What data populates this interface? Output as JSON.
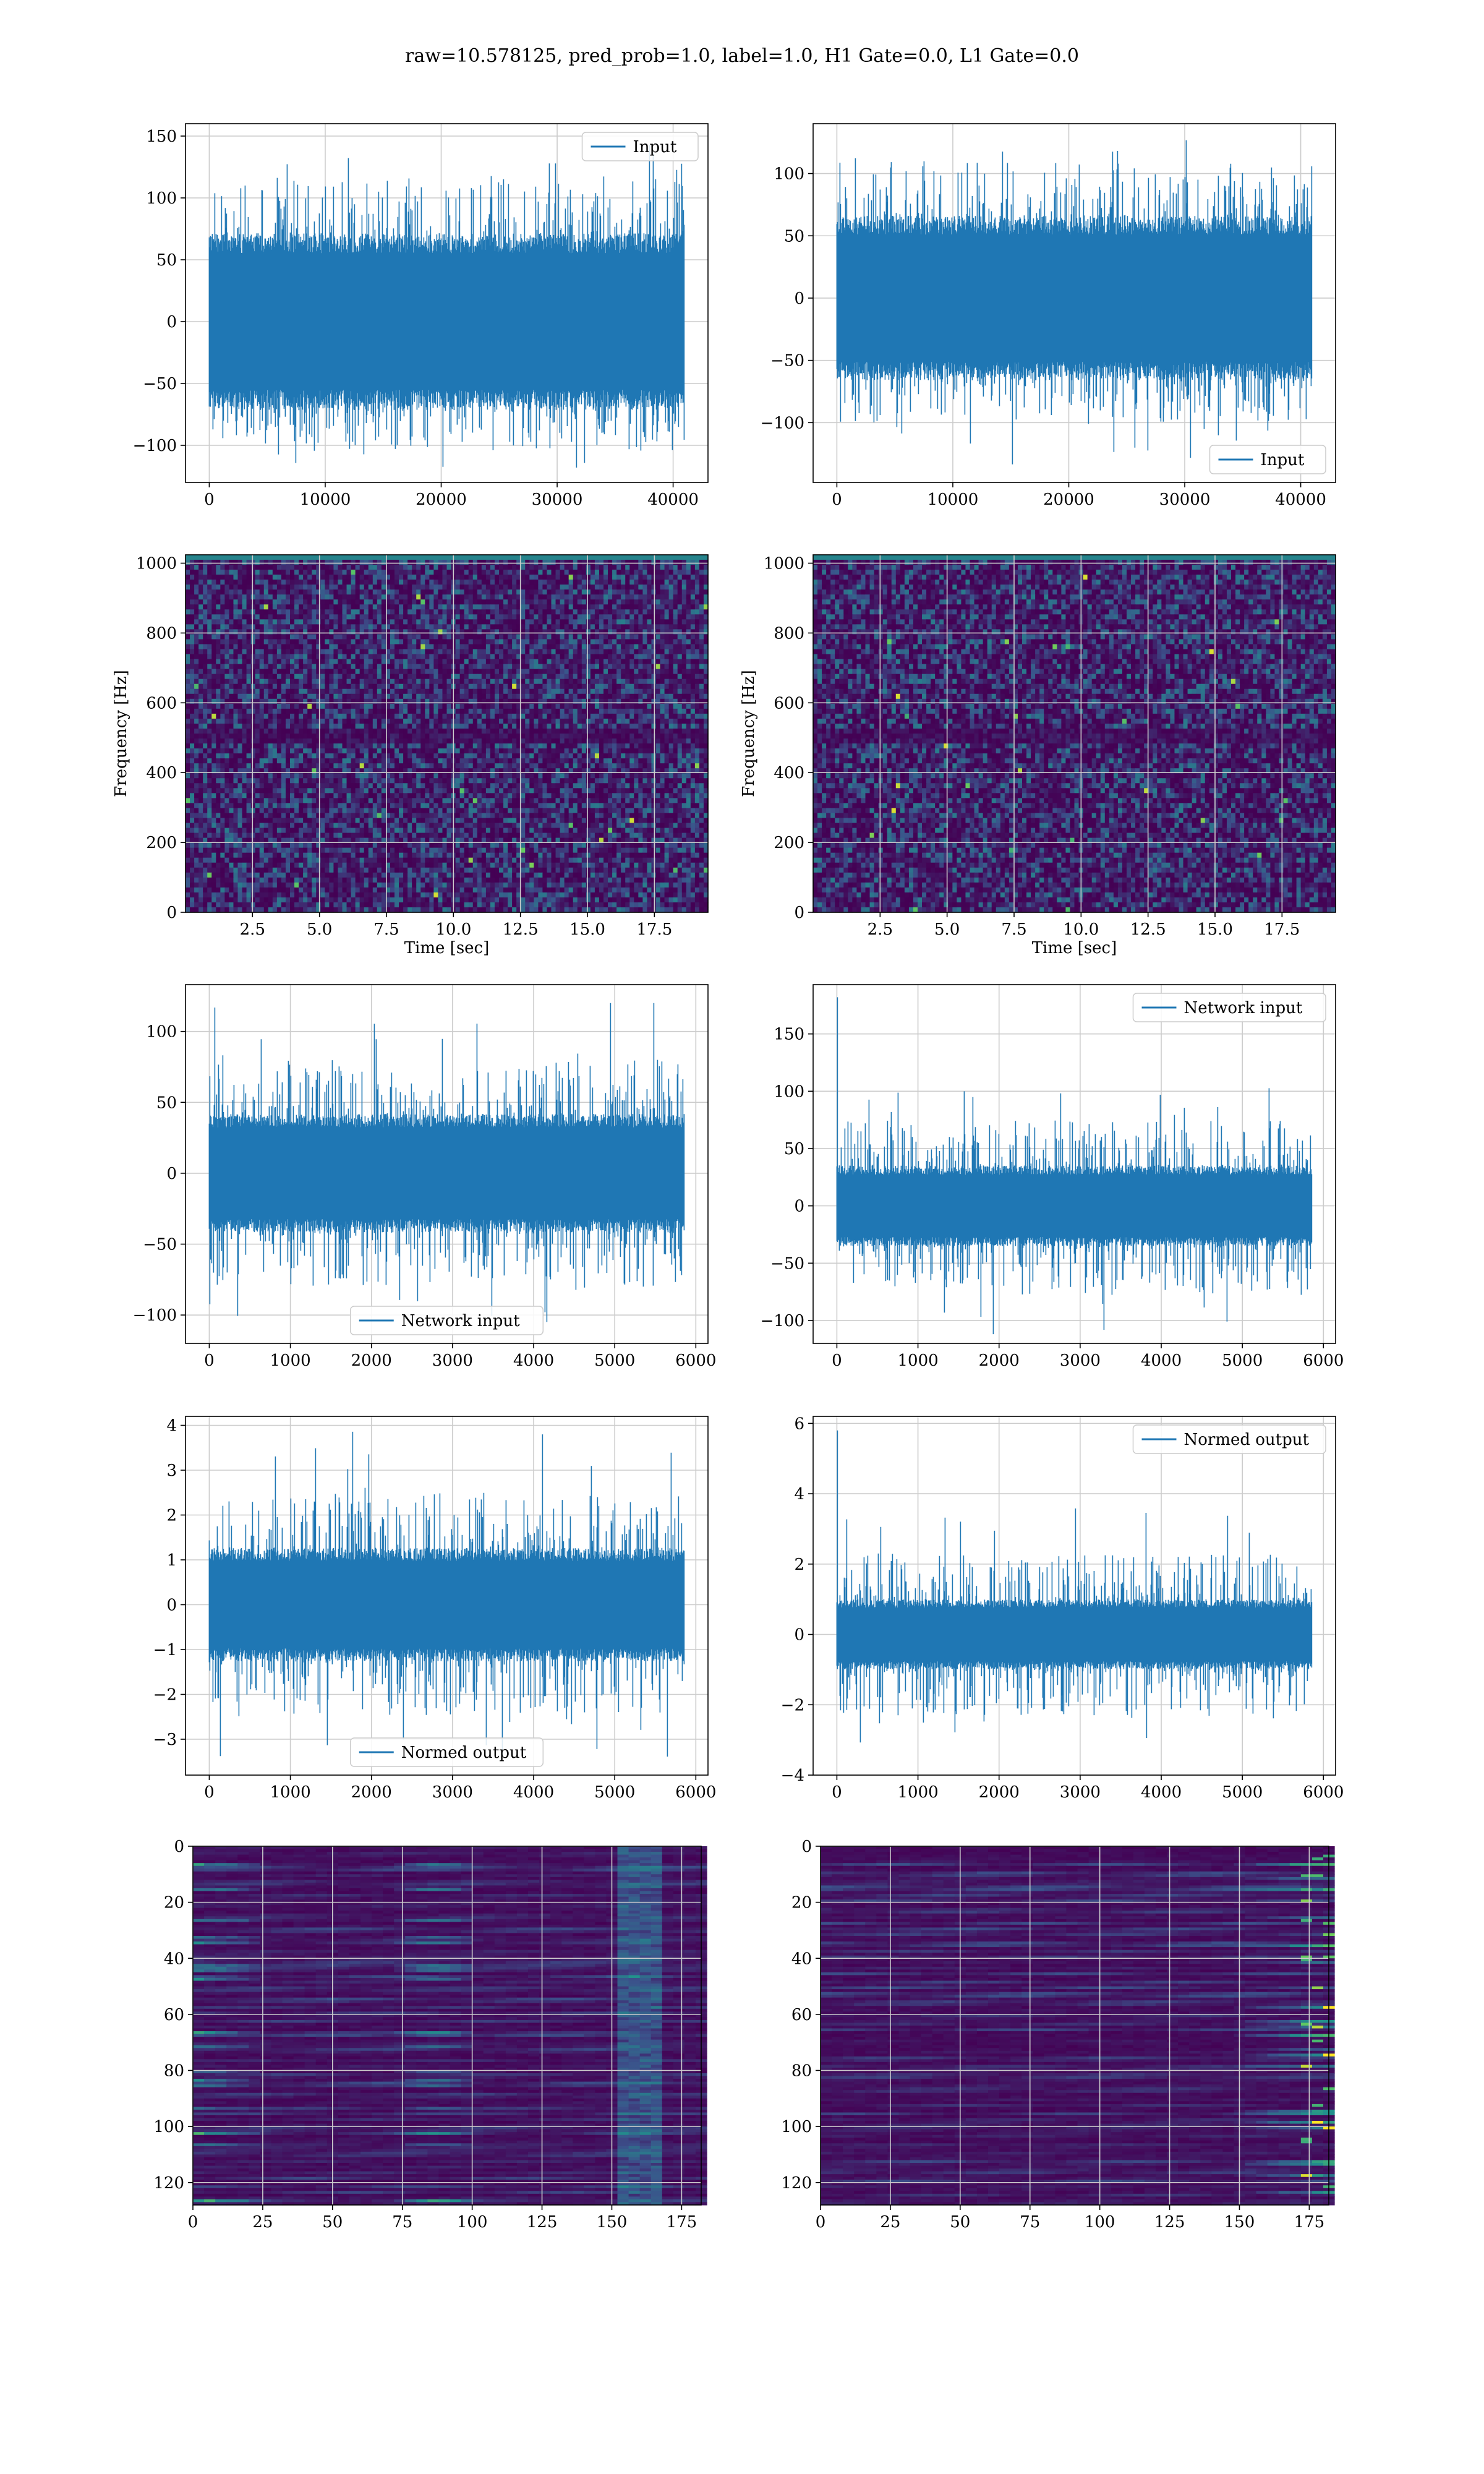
{
  "suptitle": "raw=10.578125, pred_prob=1.0, label=1.0, H1 Gate=0.0, L1 Gate=0.0",
  "colors": {
    "line": "#1f77b4",
    "grid": "#cccccc",
    "viridis": [
      "#440154",
      "#3b528b",
      "#21918c",
      "#5ec962",
      "#fde725"
    ]
  },
  "chart_data": [
    {
      "id": "h1-input",
      "type": "line",
      "grid": true,
      "series": [
        {
          "name": "Input"
        }
      ],
      "legend": "top-right",
      "xlim": [
        -2048,
        43008
      ],
      "ylim": [
        -130,
        160
      ],
      "xticks": [
        0,
        10000,
        20000,
        30000,
        40000
      ],
      "yticks": [
        -100,
        -50,
        0,
        50,
        100,
        150
      ],
      "signal": {
        "length": 40960,
        "core": 65,
        "peaks_pos": 118,
        "peaks_neg": -105,
        "max": 150,
        "min": -120
      }
    },
    {
      "id": "l1-input",
      "type": "line",
      "grid": true,
      "series": [
        {
          "name": "Input"
        }
      ],
      "legend": "bottom-right",
      "xlim": [
        -2048,
        43008
      ],
      "ylim": [
        -148,
        140
      ],
      "xticks": [
        0,
        10000,
        20000,
        30000,
        40000
      ],
      "yticks": [
        -100,
        -50,
        0,
        50,
        100
      ],
      "signal": {
        "length": 40960,
        "core": 60,
        "peaks_pos": 110,
        "peaks_neg": -100,
        "max": 130,
        "min": -135
      }
    },
    {
      "id": "h1-spectrogram",
      "type": "heatmap",
      "grid": true,
      "xlabel": "Time [sec]",
      "ylabel": "Frequency [Hz]",
      "xlim": [
        0,
        19.5
      ],
      "ylim": [
        0,
        1024
      ],
      "xticks": [
        2.5,
        5.0,
        7.5,
        10.0,
        12.5,
        15.0,
        17.5
      ],
      "xtick_labels": [
        "2.5",
        "5.0",
        "7.5",
        "10.0",
        "12.5",
        "15.0",
        "17.5"
      ],
      "yticks": [
        0,
        200,
        400,
        600,
        800,
        1000
      ],
      "colormap": "viridis"
    },
    {
      "id": "l1-spectrogram",
      "type": "heatmap",
      "grid": true,
      "xlabel": "Time [sec]",
      "ylabel": "Frequency [Hz]",
      "xlim": [
        0,
        19.5
      ],
      "ylim": [
        0,
        1024
      ],
      "xticks": [
        2.5,
        5.0,
        7.5,
        10.0,
        12.5,
        15.0,
        17.5
      ],
      "xtick_labels": [
        "2.5",
        "5.0",
        "7.5",
        "10.0",
        "12.5",
        "15.0",
        "17.5"
      ],
      "yticks": [
        0,
        200,
        400,
        600,
        800,
        1000
      ],
      "colormap": "viridis"
    },
    {
      "id": "h1-network-input",
      "type": "line",
      "grid": true,
      "series": [
        {
          "name": "Network input"
        }
      ],
      "legend": "bottom-center",
      "xlim": [
        -293,
        6150
      ],
      "ylim": [
        -120,
        133
      ],
      "xticks": [
        0,
        1000,
        2000,
        3000,
        4000,
        5000,
        6000
      ],
      "yticks": [
        -100,
        -50,
        0,
        50,
        100
      ],
      "signal": {
        "length": 5856,
        "core": 38,
        "peaks_pos": 80,
        "peaks_neg": -80,
        "max": 122,
        "min": -105
      }
    },
    {
      "id": "l1-network-input",
      "type": "line",
      "grid": true,
      "series": [
        {
          "name": "Network input"
        }
      ],
      "legend": "top-right",
      "xlim": [
        -293,
        6150
      ],
      "ylim": [
        -120,
        193
      ],
      "xticks": [
        0,
        1000,
        2000,
        3000,
        4000,
        5000,
        6000
      ],
      "yticks": [
        -100,
        -50,
        0,
        50,
        100,
        150
      ],
      "signal": {
        "length": 5856,
        "core": 32,
        "peaks_pos": 75,
        "peaks_neg": -78,
        "max": 105,
        "min": -112,
        "start_spike": 182
      }
    },
    {
      "id": "h1-normed-output",
      "type": "line",
      "grid": true,
      "series": [
        {
          "name": "Normed output"
        }
      ],
      "legend": "bottom-center",
      "xlim": [
        -293,
        6150
      ],
      "ylim": [
        -3.8,
        4.2
      ],
      "xticks": [
        0,
        1000,
        2000,
        3000,
        4000,
        5000,
        6000
      ],
      "yticks": [
        -3,
        -2,
        -1,
        0,
        1,
        2,
        3,
        4
      ],
      "signal": {
        "length": 5856,
        "core": 1.15,
        "peaks_pos": 2.5,
        "peaks_neg": -2.5,
        "max": 3.9,
        "min": -3.4
      }
    },
    {
      "id": "l1-normed-output",
      "type": "line",
      "grid": true,
      "series": [
        {
          "name": "Normed output"
        }
      ],
      "legend": "top-right",
      "xlim": [
        -293,
        6150
      ],
      "ylim": [
        -4.0,
        6.2
      ],
      "xticks": [
        0,
        1000,
        2000,
        3000,
        4000,
        5000,
        6000
      ],
      "yticks": [
        -4,
        -2,
        0,
        2,
        4,
        6
      ],
      "signal": {
        "length": 5856,
        "core": 0.9,
        "peaks_pos": 2.3,
        "peaks_neg": -2.4,
        "max": 3.6,
        "min": -3.1,
        "start_spike": 5.8
      }
    },
    {
      "id": "h1-feature-map",
      "type": "heatmap",
      "grid": true,
      "xlim": [
        0,
        182
      ],
      "ylim": [
        128,
        0
      ],
      "xticks": [
        0,
        25,
        50,
        75,
        100,
        125,
        150,
        175
      ],
      "yticks": [
        0,
        20,
        40,
        60,
        80,
        100,
        120
      ],
      "colormap": "viridis"
    },
    {
      "id": "l1-feature-map",
      "type": "heatmap",
      "grid": true,
      "xlim": [
        0,
        182
      ],
      "ylim": [
        128,
        0
      ],
      "xticks": [
        0,
        25,
        50,
        75,
        100,
        125,
        150,
        175
      ],
      "yticks": [
        0,
        20,
        40,
        60,
        80,
        100,
        120
      ],
      "colormap": "viridis"
    }
  ]
}
